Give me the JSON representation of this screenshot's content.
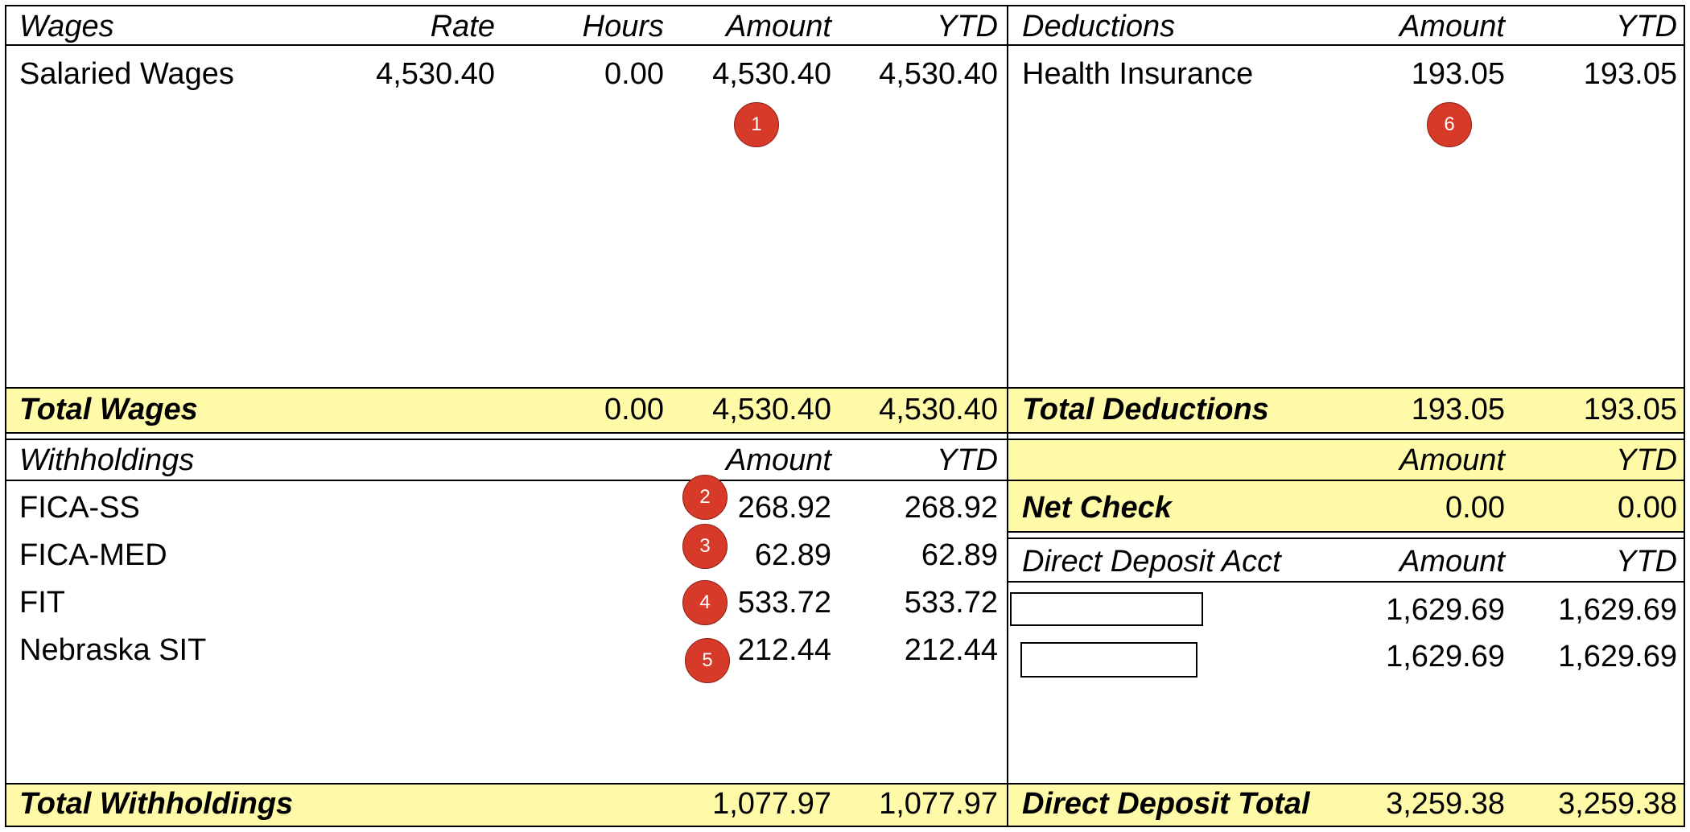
{
  "wages": {
    "headers": {
      "name": "Wages",
      "rate": "Rate",
      "hours": "Hours",
      "amount": "Amount",
      "ytd": "YTD"
    },
    "rows": [
      {
        "name": "Salaried Wages",
        "rate": "4,530.40",
        "hours": "0.00",
        "amount": "4,530.40",
        "ytd": "4,530.40"
      }
    ],
    "total": {
      "label": "Total Wages",
      "hours": "0.00",
      "amount": "4,530.40",
      "ytd": "4,530.40"
    }
  },
  "deductions": {
    "headers": {
      "name": "Deductions",
      "amount": "Amount",
      "ytd": "YTD"
    },
    "rows": [
      {
        "name": "Health Insurance",
        "amount": "193.05",
        "ytd": "193.05"
      }
    ],
    "total": {
      "label": "Total Deductions",
      "amount": "193.05",
      "ytd": "193.05"
    }
  },
  "withholdings": {
    "headers": {
      "name": "Withholdings",
      "amount": "Amount",
      "ytd": "YTD"
    },
    "rows": [
      {
        "name": "FICA-SS",
        "amount": "268.92",
        "ytd": "268.92"
      },
      {
        "name": "FICA-MED",
        "amount": "62.89",
        "ytd": "62.89"
      },
      {
        "name": "FIT",
        "amount": "533.72",
        "ytd": "533.72"
      },
      {
        "name": "Nebraska SIT",
        "amount": "212.44",
        "ytd": "212.44"
      }
    ],
    "total": {
      "label": "Total Withholdings",
      "amount": "1,077.97",
      "ytd": "1,077.97"
    }
  },
  "net_check": {
    "headers": {
      "amount": "Amount",
      "ytd": "YTD"
    },
    "label": "Net Check",
    "amount": "0.00",
    "ytd": "0.00"
  },
  "direct_deposit": {
    "headers": {
      "name": "Direct Deposit Acct",
      "amount": "Amount",
      "ytd": "YTD"
    },
    "rows": [
      {
        "account": "",
        "amount": "1,629.69",
        "ytd": "1,629.69"
      },
      {
        "account": "",
        "amount": "1,629.69",
        "ytd": "1,629.69"
      }
    ],
    "total": {
      "label": "Direct Deposit Total",
      "amount": "3,259.38",
      "ytd": "3,259.38"
    }
  },
  "badges": [
    "1",
    "2",
    "3",
    "4",
    "5",
    "6"
  ],
  "colors": {
    "highlight": "#fffaa8",
    "badge": "#d83a2a"
  }
}
